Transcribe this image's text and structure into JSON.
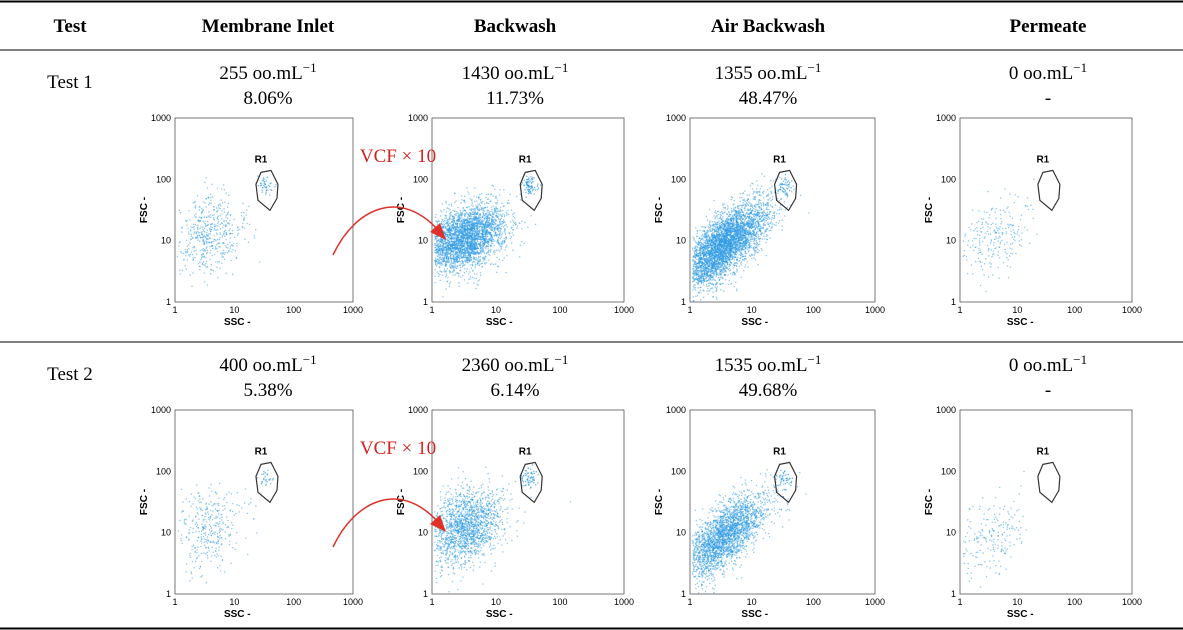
{
  "table": {
    "header": [
      "Test",
      "Membrane Inlet",
      "Backwash",
      "Air Backwash",
      "Permeate"
    ],
    "rows": [
      {
        "label": "Test 1",
        "cells": [
          {
            "count": "255 oo.mL",
            "exponent": "−1",
            "percent": "8.06%"
          },
          {
            "count": "1430 oo.mL",
            "exponent": "−1",
            "percent": "11.73%"
          },
          {
            "count": "1355 oo.mL",
            "exponent": "−1",
            "percent": "48.47%"
          },
          {
            "count": "0 oo.mL",
            "exponent": "−1",
            "percent": "-"
          }
        ]
      },
      {
        "label": "Test 2",
        "cells": [
          {
            "count": "400 oo.mL",
            "exponent": "−1",
            "percent": "5.38%"
          },
          {
            "count": "2360 oo.mL",
            "exponent": "−1",
            "percent": "6.14%"
          },
          {
            "count": "1535 oo.mL",
            "exponent": "−1",
            "percent": "49.68%"
          },
          {
            "count": "0 oo.mL",
            "exponent": "−1",
            "percent": "-"
          }
        ]
      }
    ]
  },
  "plot": {
    "x_label": "SSC -",
    "y_label": "FSC -",
    "gate": "R1",
    "ticks": [
      "1",
      "10",
      "100",
      "1000"
    ]
  },
  "annotation": "VCF × 10"
}
